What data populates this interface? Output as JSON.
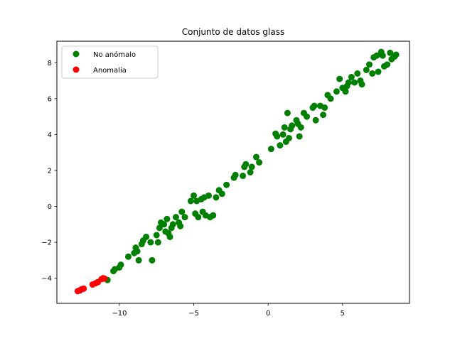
{
  "chart_data": {
    "type": "scatter",
    "title": "Conjunto de datos glass",
    "xlabel": "",
    "ylabel": "",
    "xlim": [
      -14.2,
      9.5
    ],
    "ylim": [
      -5.4,
      9.2
    ],
    "xticks": [
      -10,
      -5,
      0,
      5
    ],
    "yticks": [
      -4,
      -2,
      0,
      2,
      4,
      6,
      8
    ],
    "xtick_labels": [
      "−10",
      "−5",
      "0",
      "5"
    ],
    "ytick_labels": [
      "−4",
      "−2",
      "0",
      "2",
      "4",
      "6",
      "8"
    ],
    "grid": false,
    "legend_position": "top-left",
    "series": [
      {
        "name": "No anómalo",
        "color": "#008000",
        "points": [
          [
            -10.8,
            -4.1
          ],
          [
            -10.4,
            -3.6
          ],
          [
            -10.3,
            -3.5
          ],
          [
            -10.0,
            -3.4
          ],
          [
            -9.9,
            -3.25
          ],
          [
            -9.4,
            -2.8
          ],
          [
            -9.0,
            -2.6
          ],
          [
            -8.9,
            -2.3
          ],
          [
            -8.8,
            -2.5
          ],
          [
            -8.7,
            -3.0
          ],
          [
            -8.5,
            -2.1
          ],
          [
            -8.4,
            -1.9
          ],
          [
            -8.2,
            -1.7
          ],
          [
            -7.9,
            -2.0
          ],
          [
            -7.8,
            -3.0
          ],
          [
            -7.5,
            -1.6
          ],
          [
            -7.4,
            -2.0
          ],
          [
            -7.3,
            -1.2
          ],
          [
            -7.2,
            -0.9
          ],
          [
            -7.0,
            -1.0
          ],
          [
            -6.9,
            -1.4
          ],
          [
            -6.8,
            -0.7
          ],
          [
            -6.7,
            -1.5
          ],
          [
            -6.6,
            -1.7
          ],
          [
            -6.5,
            -1.2
          ],
          [
            -6.4,
            -1.0
          ],
          [
            -6.2,
            -0.6
          ],
          [
            -6.0,
            -0.9
          ],
          [
            -5.9,
            -1.1
          ],
          [
            -5.8,
            -0.3
          ],
          [
            -5.6,
            -0.6
          ],
          [
            -5.2,
            0.3
          ],
          [
            -5.0,
            0.6
          ],
          [
            -4.9,
            -0.4
          ],
          [
            -4.8,
            0.3
          ],
          [
            -4.7,
            -0.6
          ],
          [
            -4.5,
            0.4
          ],
          [
            -4.4,
            -0.3
          ],
          [
            -4.3,
            0.5
          ],
          [
            -4.2,
            -0.5
          ],
          [
            -4.0,
            0.6
          ],
          [
            -3.9,
            -0.6
          ],
          [
            -3.7,
            -0.5
          ],
          [
            -3.5,
            0.5
          ],
          [
            -3.3,
            0.9
          ],
          [
            -3.1,
            0.7
          ],
          [
            -2.8,
            1.2
          ],
          [
            -2.3,
            1.6
          ],
          [
            -2.2,
            1.75
          ],
          [
            -1.7,
            1.7
          ],
          [
            -1.6,
            2.2
          ],
          [
            -1.5,
            2.35
          ],
          [
            -1.2,
            1.9
          ],
          [
            -1.1,
            2.2
          ],
          [
            -0.8,
            2.75
          ],
          [
            -0.6,
            2.45
          ],
          [
            0.2,
            3.2
          ],
          [
            0.5,
            4.05
          ],
          [
            0.6,
            3.9
          ],
          [
            0.8,
            3.4
          ],
          [
            1.0,
            4.0
          ],
          [
            1.1,
            4.4
          ],
          [
            1.2,
            3.6
          ],
          [
            1.3,
            5.2
          ],
          [
            1.4,
            3.8
          ],
          [
            1.5,
            4.3
          ],
          [
            1.6,
            4.5
          ],
          [
            1.9,
            4.8
          ],
          [
            2.0,
            4.6
          ],
          [
            2.1,
            3.9
          ],
          [
            2.2,
            4.4
          ],
          [
            2.4,
            5.2
          ],
          [
            2.6,
            5.0
          ],
          [
            3.0,
            5.5
          ],
          [
            3.1,
            5.6
          ],
          [
            3.2,
            4.8
          ],
          [
            3.5,
            5.6
          ],
          [
            3.8,
            5.5
          ],
          [
            3.7,
            5.1
          ],
          [
            4.0,
            6.2
          ],
          [
            4.2,
            6.0
          ],
          [
            4.6,
            6.4
          ],
          [
            4.8,
            7.1
          ],
          [
            5.0,
            6.6
          ],
          [
            5.2,
            6.4
          ],
          [
            5.3,
            6.7
          ],
          [
            5.4,
            6.9
          ],
          [
            5.6,
            7.2
          ],
          [
            5.8,
            6.9
          ],
          [
            6.0,
            7.4
          ],
          [
            6.2,
            7.0
          ],
          [
            6.3,
            6.8
          ],
          [
            6.6,
            7.6
          ],
          [
            6.8,
            7.9
          ],
          [
            7.0,
            7.4
          ],
          [
            7.1,
            8.3
          ],
          [
            7.3,
            8.4
          ],
          [
            7.4,
            7.5
          ],
          [
            7.6,
            8.6
          ],
          [
            7.7,
            8.4
          ],
          [
            7.8,
            7.8
          ],
          [
            8.0,
            7.9
          ],
          [
            8.2,
            8.55
          ],
          [
            8.3,
            8.2
          ],
          [
            8.5,
            8.35
          ],
          [
            8.6,
            8.45
          ]
        ]
      },
      {
        "name": "Anomalía",
        "color": "#ff0000",
        "points": [
          [
            -12.8,
            -4.72
          ],
          [
            -12.65,
            -4.68
          ],
          [
            -12.55,
            -4.62
          ],
          [
            -12.4,
            -4.58
          ],
          [
            -11.8,
            -4.35
          ],
          [
            -11.6,
            -4.28
          ],
          [
            -11.45,
            -4.22
          ],
          [
            -11.2,
            -4.05
          ],
          [
            -11.1,
            -4.0
          ],
          [
            -11.0,
            -4.02
          ]
        ]
      }
    ]
  }
}
